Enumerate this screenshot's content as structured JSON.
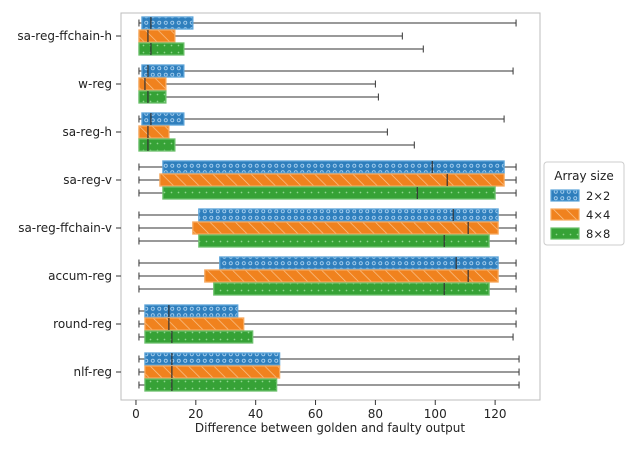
{
  "colors": {
    "blue": "#2f7fbd",
    "orange": "#f0821e",
    "green": "#36a236",
    "blue_edge": "#5ba3d8",
    "orange_edge": "#f7a85c",
    "green_edge": "#6cc06c"
  },
  "chart_data": {
    "type": "boxplot",
    "orientation": "horizontal",
    "xlabel": "Difference between golden and faulty output",
    "ylabel": "",
    "xlim": [
      -5,
      135
    ],
    "xticks": [
      0,
      20,
      40,
      60,
      80,
      100,
      120
    ],
    "legend": {
      "title": "Array size",
      "placement": "right",
      "entries": [
        "2×2",
        "4×4",
        "8×8"
      ]
    },
    "categories": [
      "sa-reg-ffchain-h",
      "w-reg",
      "sa-reg-h",
      "sa-reg-v",
      "sa-reg-ffchain-v",
      "accum-reg",
      "round-reg",
      "nlf-reg"
    ],
    "series": [
      {
        "name": "2×2",
        "boxes": [
          {
            "min": 1,
            "q1": 2,
            "median": 5,
            "q3": 19,
            "max": 127
          },
          {
            "min": 1,
            "q1": 2,
            "median": 4,
            "q3": 16,
            "max": 126
          },
          {
            "min": 1,
            "q1": 2,
            "median": 5,
            "q3": 16,
            "max": 123
          },
          {
            "min": 1,
            "q1": 9,
            "median": 99,
            "q3": 123,
            "max": 127
          },
          {
            "min": 1,
            "q1": 21,
            "median": 106,
            "q3": 121,
            "max": 127
          },
          {
            "min": 1,
            "q1": 28,
            "median": 107,
            "q3": 121,
            "max": 127
          },
          {
            "min": 1,
            "q1": 3,
            "median": 11,
            "q3": 34,
            "max": 127
          },
          {
            "min": 1,
            "q1": 3,
            "median": 12,
            "q3": 48,
            "max": 128
          }
        ]
      },
      {
        "name": "4×4",
        "boxes": [
          {
            "min": 1,
            "q1": 1,
            "median": 4,
            "q3": 13,
            "max": 89
          },
          {
            "min": 1,
            "q1": 1,
            "median": 3,
            "q3": 10,
            "max": 80
          },
          {
            "min": 1,
            "q1": 1,
            "median": 4,
            "q3": 11,
            "max": 84
          },
          {
            "min": 1,
            "q1": 8,
            "median": 104,
            "q3": 123,
            "max": 127
          },
          {
            "min": 1,
            "q1": 19,
            "median": 111,
            "q3": 121,
            "max": 127
          },
          {
            "min": 1,
            "q1": 23,
            "median": 111,
            "q3": 121,
            "max": 127
          },
          {
            "min": 1,
            "q1": 3,
            "median": 11,
            "q3": 36,
            "max": 127
          },
          {
            "min": 1,
            "q1": 3,
            "median": 12,
            "q3": 48,
            "max": 128
          }
        ]
      },
      {
        "name": "8×8",
        "boxes": [
          {
            "min": 1,
            "q1": 1,
            "median": 5,
            "q3": 16,
            "max": 96
          },
          {
            "min": 1,
            "q1": 1,
            "median": 4,
            "q3": 10,
            "max": 81
          },
          {
            "min": 1,
            "q1": 1,
            "median": 4,
            "q3": 13,
            "max": 93
          },
          {
            "min": 1,
            "q1": 9,
            "median": 94,
            "q3": 120,
            "max": 127
          },
          {
            "min": 1,
            "q1": 21,
            "median": 103,
            "q3": 118,
            "max": 127
          },
          {
            "min": 1,
            "q1": 26,
            "median": 103,
            "q3": 118,
            "max": 127
          },
          {
            "min": 1,
            "q1": 3,
            "median": 12,
            "q3": 39,
            "max": 126
          },
          {
            "min": 1,
            "q1": 3,
            "median": 12,
            "q3": 47,
            "max": 128
          }
        ]
      }
    ]
  }
}
